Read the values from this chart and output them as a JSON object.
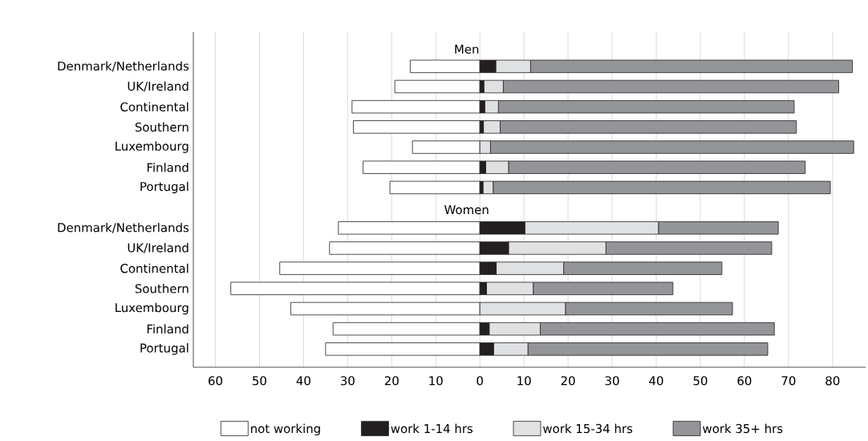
{
  "chart_data": {
    "type": "bar",
    "orientation": "horizontal",
    "stacked": true,
    "categories": [
      "Denmark/Netherlands",
      "UK/Ireland",
      "Continental",
      "Southern",
      "Luxembourg",
      "Finland",
      "Portugal",
      null,
      "Denmark/Netherlands",
      "UK/Ireland",
      "Continental",
      "Southern",
      "Luxembourg",
      "Finland",
      "Portugal"
    ],
    "series": [
      {
        "name": "not working",
        "color": "#ffffff",
        "values": [
          -15.8,
          -19.3,
          -29.0,
          -28.7,
          -15.3,
          -26.5,
          -20.4,
          null,
          -32.1,
          -34.1,
          -45.4,
          -56.5,
          -42.9,
          -33.3,
          -35.0
        ]
      },
      {
        "name": "work 1-14 hrs",
        "color": "#231f20",
        "values": [
          3.6,
          0.9,
          1.1,
          0.8,
          0,
          1.3,
          0.7,
          null,
          10.2,
          6.5,
          3.7,
          1.5,
          0,
          2.1,
          3.1
        ]
      },
      {
        "name": "work 15-34 hrs",
        "color": "#e0e1e3",
        "values": [
          7.9,
          4.4,
          3.1,
          3.8,
          2.4,
          5.2,
          2.3,
          null,
          30.3,
          22.1,
          15.3,
          10.6,
          19.4,
          11.6,
          7.8
        ]
      },
      {
        "name": "work 35+ hrs",
        "color": "#939598",
        "values": [
          73.0,
          76.1,
          67.1,
          67.2,
          82.4,
          67.3,
          76.5,
          null,
          27.2,
          37.6,
          35.9,
          31.7,
          37.9,
          53.1,
          54.4
        ]
      }
    ],
    "xlim": [
      -65,
      87.5
    ],
    "xticks": [
      {
        "value": -60,
        "label": "60"
      },
      {
        "value": -50,
        "label": "50"
      },
      {
        "value": -40,
        "label": "40"
      },
      {
        "value": -30,
        "label": "30"
      },
      {
        "value": -20,
        "label": "20"
      },
      {
        "value": -10,
        "label": "10"
      },
      0,
      10,
      20,
      30,
      40,
      50,
      60,
      70,
      80
    ],
    "grid": "x",
    "legend": "bottom",
    "annotations": [
      "Men",
      "Women"
    ]
  }
}
